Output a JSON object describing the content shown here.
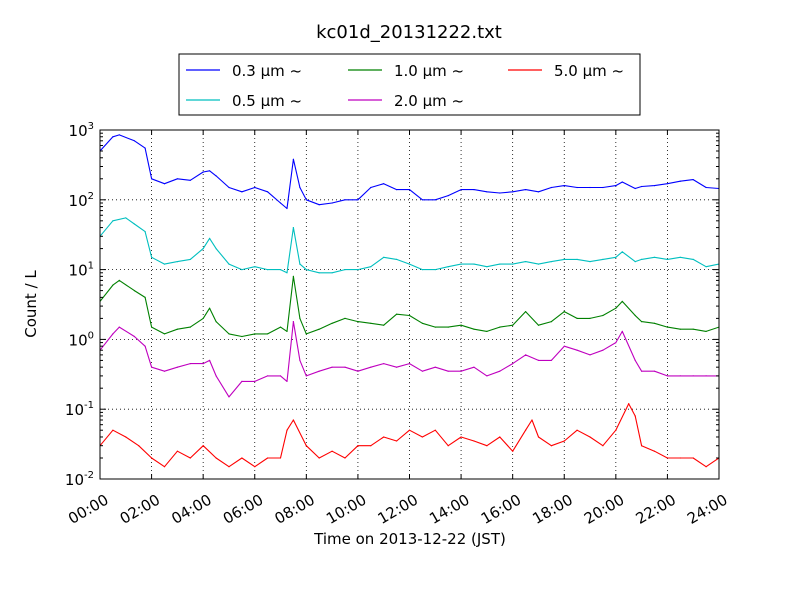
{
  "chart_data": {
    "type": "line",
    "title": "kc01d_20131222.txt",
    "xlabel": "Time on 2013-12-22 (JST)",
    "ylabel": "Count / L",
    "yscale": "log",
    "ylim": [
      0.01,
      1000
    ],
    "xlim": [
      "00:00",
      "24:00"
    ],
    "grid": true,
    "legend_position": "top-center",
    "x_ticks": [
      "00:00",
      "02:00",
      "04:00",
      "06:00",
      "08:00",
      "10:00",
      "12:00",
      "14:00",
      "16:00",
      "18:00",
      "20:00",
      "22:00",
      "24:00"
    ],
    "y_ticks": [
      {
        "base": "10",
        "exp": "-2",
        "value": 0.01
      },
      {
        "base": "10",
        "exp": "-1",
        "value": 0.1
      },
      {
        "base": "10",
        "exp": "0",
        "value": 1
      },
      {
        "base": "10",
        "exp": "1",
        "value": 10
      },
      {
        "base": "10",
        "exp": "2",
        "value": 100
      },
      {
        "base": "10",
        "exp": "3",
        "value": 1000
      }
    ],
    "series": [
      {
        "name": "0.3 μm ~",
        "color": "#0000ff",
        "x": [
          "00:00",
          "00:30",
          "00:45",
          "01:20",
          "01:45",
          "02:00",
          "02:30",
          "03:00",
          "03:30",
          "04:00",
          "04:15",
          "04:30",
          "05:00",
          "05:30",
          "06:00",
          "06:30",
          "07:00",
          "07:15",
          "07:30",
          "07:45",
          "08:00",
          "08:30",
          "09:00",
          "09:30",
          "10:00",
          "10:30",
          "11:00",
          "11:30",
          "12:00",
          "12:30",
          "13:00",
          "13:30",
          "14:00",
          "14:30",
          "15:00",
          "15:30",
          "16:00",
          "16:30",
          "17:00",
          "17:30",
          "18:00",
          "18:30",
          "19:00",
          "19:30",
          "20:00",
          "20:15",
          "20:45",
          "21:00",
          "21:30",
          "22:00",
          "22:30",
          "23:00",
          "23:30",
          "24:00"
        ],
        "y": [
          500,
          800,
          850,
          700,
          550,
          200,
          170,
          200,
          190,
          250,
          260,
          220,
          150,
          130,
          150,
          130,
          90,
          75,
          380,
          150,
          100,
          85,
          90,
          100,
          100,
          150,
          170,
          140,
          140,
          100,
          100,
          115,
          140,
          140,
          130,
          125,
          130,
          140,
          130,
          150,
          160,
          150,
          150,
          150,
          160,
          180,
          145,
          155,
          160,
          170,
          185,
          195,
          150,
          145
        ]
      },
      {
        "name": "0.5 μm ~",
        "color": "#00bfbf",
        "x": [
          "00:00",
          "00:30",
          "01:00",
          "01:20",
          "01:45",
          "02:00",
          "02:30",
          "03:00",
          "03:30",
          "04:00",
          "04:15",
          "04:30",
          "05:00",
          "05:30",
          "06:00",
          "06:30",
          "07:00",
          "07:15",
          "07:30",
          "07:45",
          "08:00",
          "08:30",
          "09:00",
          "09:30",
          "10:00",
          "10:30",
          "11:00",
          "11:30",
          "12:00",
          "12:30",
          "13:00",
          "13:30",
          "14:00",
          "14:30",
          "15:00",
          "15:30",
          "16:00",
          "16:30",
          "17:00",
          "17:30",
          "18:00",
          "18:30",
          "19:00",
          "19:30",
          "20:00",
          "20:15",
          "20:45",
          "21:00",
          "21:30",
          "22:00",
          "22:30",
          "23:00",
          "23:30",
          "24:00"
        ],
        "y": [
          30,
          50,
          55,
          45,
          35,
          15,
          12,
          13,
          14,
          20,
          28,
          20,
          12,
          10,
          11,
          10,
          10,
          9,
          40,
          12,
          10,
          9,
          9,
          10,
          10,
          11,
          15,
          14,
          12,
          10,
          10,
          11,
          12,
          12,
          11,
          12,
          12,
          13,
          12,
          13,
          14,
          14,
          13,
          14,
          15,
          18,
          13,
          14,
          15,
          14,
          15,
          14,
          11,
          12
        ]
      },
      {
        "name": "1.0 μm ~",
        "color": "#008000",
        "x": [
          "00:00",
          "00:30",
          "00:45",
          "01:20",
          "01:45",
          "02:00",
          "02:30",
          "03:00",
          "03:30",
          "04:00",
          "04:15",
          "04:30",
          "05:00",
          "05:30",
          "06:00",
          "06:30",
          "07:00",
          "07:15",
          "07:30",
          "07:45",
          "08:00",
          "08:30",
          "09:00",
          "09:30",
          "10:00",
          "10:30",
          "11:00",
          "11:30",
          "12:00",
          "12:30",
          "13:00",
          "13:30",
          "14:00",
          "14:30",
          "15:00",
          "15:30",
          "16:00",
          "16:30",
          "17:00",
          "17:30",
          "18:00",
          "18:30",
          "19:00",
          "19:30",
          "20:00",
          "20:15",
          "20:45",
          "21:00",
          "21:30",
          "22:00",
          "22:30",
          "23:00",
          "23:30",
          "24:00"
        ],
        "y": [
          3.5,
          6,
          7,
          5,
          4,
          1.5,
          1.2,
          1.4,
          1.5,
          2,
          2.8,
          1.8,
          1.2,
          1.1,
          1.2,
          1.2,
          1.5,
          1.3,
          8,
          2,
          1.2,
          1.4,
          1.7,
          2,
          1.8,
          1.7,
          1.6,
          2.3,
          2.2,
          1.7,
          1.5,
          1.5,
          1.6,
          1.4,
          1.3,
          1.5,
          1.6,
          2.5,
          1.6,
          1.8,
          2.5,
          2,
          2,
          2.2,
          2.8,
          3.5,
          2.2,
          1.8,
          1.7,
          1.5,
          1.4,
          1.4,
          1.3,
          1.5
        ]
      },
      {
        "name": "2.0 μm ~",
        "color": "#bf00bf",
        "x": [
          "00:00",
          "00:30",
          "00:45",
          "01:20",
          "01:45",
          "02:00",
          "02:30",
          "03:00",
          "03:30",
          "04:00",
          "04:15",
          "04:30",
          "05:00",
          "05:30",
          "06:00",
          "06:30",
          "07:00",
          "07:15",
          "07:30",
          "07:45",
          "08:00",
          "08:30",
          "09:00",
          "09:30",
          "10:00",
          "10:30",
          "11:00",
          "11:30",
          "12:00",
          "12:30",
          "13:00",
          "13:30",
          "14:00",
          "14:30",
          "15:00",
          "15:30",
          "16:00",
          "16:30",
          "17:00",
          "17:30",
          "18:00",
          "18:30",
          "19:00",
          "19:30",
          "20:00",
          "20:15",
          "20:45",
          "21:00",
          "21:30",
          "22:00",
          "22:30",
          "23:00",
          "23:30",
          "24:00"
        ],
        "y": [
          0.7,
          1.2,
          1.5,
          1.1,
          0.8,
          0.4,
          0.35,
          0.4,
          0.45,
          0.45,
          0.5,
          0.3,
          0.15,
          0.25,
          0.25,
          0.3,
          0.3,
          0.25,
          1.8,
          0.5,
          0.3,
          0.35,
          0.4,
          0.4,
          0.35,
          0.4,
          0.45,
          0.4,
          0.45,
          0.35,
          0.4,
          0.35,
          0.35,
          0.4,
          0.3,
          0.35,
          0.45,
          0.6,
          0.5,
          0.5,
          0.8,
          0.7,
          0.6,
          0.7,
          0.9,
          1.3,
          0.5,
          0.35,
          0.35,
          0.3,
          0.3,
          0.3,
          0.3,
          0.3
        ]
      },
      {
        "name": "5.0 μm ~",
        "color": "#ff0000",
        "x": [
          "00:00",
          "00:30",
          "01:00",
          "01:30",
          "02:00",
          "02:30",
          "03:00",
          "03:30",
          "04:00",
          "04:30",
          "05:00",
          "05:30",
          "06:00",
          "06:30",
          "07:00",
          "07:15",
          "07:30",
          "08:00",
          "08:30",
          "09:00",
          "09:30",
          "10:00",
          "10:30",
          "11:00",
          "11:30",
          "12:00",
          "12:30",
          "13:00",
          "13:30",
          "14:00",
          "14:30",
          "15:00",
          "15:30",
          "16:00",
          "16:30",
          "16:45",
          "17:00",
          "17:30",
          "18:00",
          "18:30",
          "19:00",
          "19:30",
          "20:00",
          "20:30",
          "20:45",
          "21:00",
          "21:30",
          "22:00",
          "22:30",
          "23:00",
          "23:30",
          "24:00"
        ],
        "y": [
          0.03,
          0.05,
          0.04,
          0.03,
          0.02,
          0.015,
          0.025,
          0.02,
          0.03,
          0.02,
          0.015,
          0.02,
          0.015,
          0.02,
          0.02,
          0.05,
          0.07,
          0.03,
          0.02,
          0.025,
          0.02,
          0.03,
          0.03,
          0.04,
          0.035,
          0.05,
          0.04,
          0.05,
          0.03,
          0.04,
          0.035,
          0.03,
          0.04,
          0.025,
          0.05,
          0.07,
          0.04,
          0.03,
          0.035,
          0.05,
          0.04,
          0.03,
          0.05,
          0.12,
          0.08,
          0.03,
          0.025,
          0.02,
          0.02,
          0.02,
          0.015,
          0.02
        ]
      }
    ]
  }
}
